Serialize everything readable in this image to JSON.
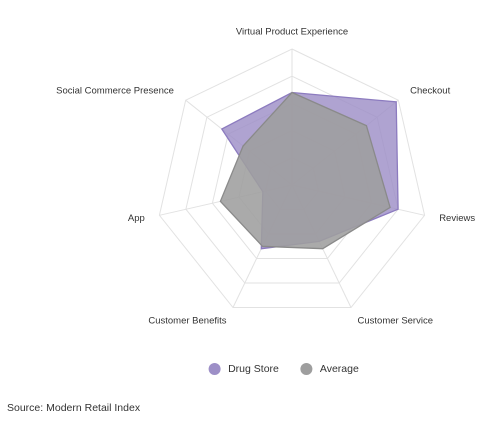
{
  "chart_data": {
    "type": "radar",
    "categories": [
      "Virtual Product Experience",
      "Checkout",
      "Reviews",
      "Customer Service",
      "Customer Benefits",
      "App",
      "Social Commerce Presence"
    ],
    "range": [
      0,
      5
    ],
    "grid_levels": 5,
    "grid": true,
    "legend_position": "bottom",
    "series": [
      {
        "name": "Drug Store",
        "values": [
          3.4,
          4.9,
          4.0,
          2.3,
          2.6,
          1.1,
          3.3
        ],
        "color": "#9d8fc7",
        "stroke": "#8c7bbf"
      },
      {
        "name": "Average",
        "values": [
          3.4,
          3.5,
          3.7,
          2.6,
          2.5,
          2.7,
          2.3
        ],
        "color": "#9e9e9e",
        "stroke": "#8a8a8a"
      }
    ]
  },
  "source_text": "Source: Modern Retail Index"
}
